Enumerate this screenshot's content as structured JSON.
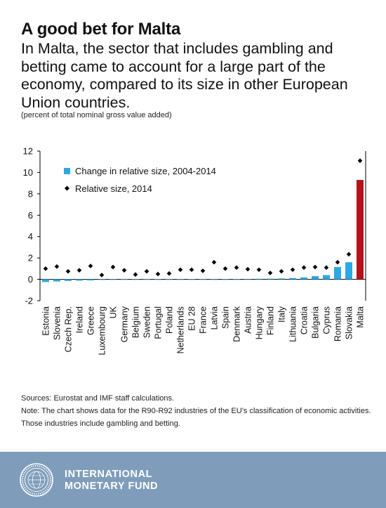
{
  "header": {
    "title": "A good bet for Malta",
    "subtitle": "In Malta, the sector that includes gambling and betting came to account for a large part of the economy, compared to its size in other European Union countries.",
    "units": "(percent of total nominal gross value added)"
  },
  "chart_data": {
    "type": "bar",
    "title": "",
    "xlabel": "",
    "ylabel": "",
    "ylim": [
      -2,
      12
    ],
    "yticks": [
      -2,
      0,
      2,
      4,
      6,
      8,
      10,
      12
    ],
    "legend_position": "top-left",
    "grid": false,
    "categories": [
      "Estonia",
      "Slovenia",
      "Czech Rep.",
      "Ireland",
      "Greece",
      "Luxembourg",
      "UK",
      "Germany",
      "Belgium",
      "Sweden",
      "Portugal",
      "Poland",
      "Netherlands",
      "EU 28",
      "France",
      "Latvia",
      "Spain",
      "Denmark",
      "Austria",
      "Hungary",
      "Finland",
      "Italy",
      "Lithuania",
      "Croatia",
      "Bulgaria",
      "Cyprus",
      "Romania",
      "Slovakia",
      "Malta"
    ],
    "series": [
      {
        "name": "Change in relative size, 2004-2014",
        "type": "bar",
        "color": "#2ea8e0",
        "highlight_color": "#b5121b",
        "values": [
          -0.25,
          -0.2,
          -0.15,
          -0.12,
          -0.1,
          -0.05,
          -0.03,
          -0.02,
          -0.02,
          -0.01,
          0.0,
          0.0,
          0.0,
          0.0,
          0.0,
          0.0,
          0.0,
          0.03,
          0.04,
          0.05,
          0.06,
          0.08,
          0.12,
          0.18,
          0.3,
          0.4,
          1.15,
          1.6,
          9.3
        ]
      },
      {
        "name": "Relative size, 2014",
        "type": "marker",
        "color": "#000000",
        "values": [
          1.0,
          1.2,
          0.75,
          0.85,
          1.25,
          0.4,
          1.15,
          0.85,
          0.45,
          0.75,
          0.5,
          0.55,
          0.9,
          0.9,
          0.8,
          1.6,
          1.0,
          1.1,
          0.95,
          0.9,
          0.6,
          0.75,
          0.9,
          1.1,
          1.15,
          1.1,
          1.6,
          2.35,
          11.1
        ]
      }
    ]
  },
  "notes": {
    "source": "Sources: Eurostat and IMF staff calculations.",
    "note": "Note:  The chart shows data for the R90-R92 industries of the EU’s classification of economic activities. Those industries include gambling and betting."
  },
  "footer": {
    "org_line1": "INTERNATIONAL",
    "org_line2": "MONETARY FUND",
    "background": "#7f9dbb",
    "logo": "imf-seal-icon"
  }
}
